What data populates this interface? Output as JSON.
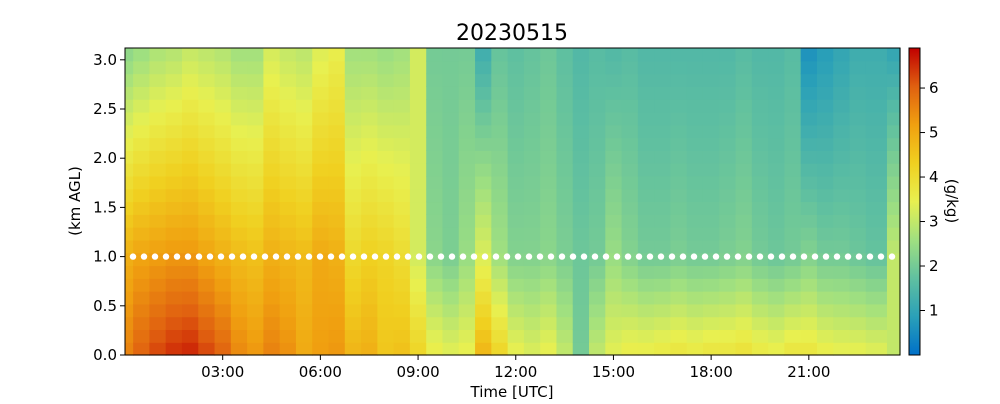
{
  "chart_data": {
    "type": "heatmap",
    "title": "20230515",
    "xlabel": "Time [UTC]",
    "ylabel": "(km AGL)",
    "xlim_hours": [
      0,
      23.8
    ],
    "ylim": [
      0,
      3.12
    ],
    "x_ticks": [
      {
        "hour": 3,
        "label": "03:00"
      },
      {
        "hour": 6,
        "label": "06:00"
      },
      {
        "hour": 9,
        "label": "09:00"
      },
      {
        "hour": 12,
        "label": "12:00"
      },
      {
        "hour": 15,
        "label": "15:00"
      },
      {
        "hour": 18,
        "label": "18:00"
      },
      {
        "hour": 21,
        "label": "21:00"
      }
    ],
    "y_ticks": [
      {
        "value": 0.0,
        "label": "0.0"
      },
      {
        "value": 0.5,
        "label": "0.5"
      },
      {
        "value": 1.0,
        "label": "1.0"
      },
      {
        "value": 1.5,
        "label": "1.5"
      },
      {
        "value": 2.0,
        "label": "2.0"
      },
      {
        "value": 2.5,
        "label": "2.5"
      },
      {
        "value": 3.0,
        "label": "3.0"
      }
    ],
    "colorbar": {
      "label": "(g/kg)",
      "range": [
        0,
        6.9
      ],
      "ticks": [
        {
          "value": 1,
          "label": "1"
        },
        {
          "value": 2,
          "label": "2"
        },
        {
          "value": 3,
          "label": "3"
        },
        {
          "value": 4,
          "label": "4"
        },
        {
          "value": 5,
          "label": "5"
        },
        {
          "value": 6,
          "label": "6"
        }
      ],
      "colormap": [
        "#0070c8",
        "#2aa0b8",
        "#60c0a0",
        "#a0e080",
        "#e8f050",
        "#f0d020",
        "#f0a010",
        "#e06010",
        "#c00000"
      ]
    },
    "reference_line": {
      "height_km": 1.0,
      "style": "dotted",
      "color": "#ffffff"
    },
    "profile_hours": [
      0,
      0.5,
      1,
      1.5,
      2,
      2.5,
      3,
      3.5,
      4,
      4.5,
      5,
      5.5,
      6,
      6.5,
      7,
      7.5,
      8,
      8.5,
      9,
      9.5,
      10,
      10.5,
      11,
      11.5,
      12,
      12.5,
      13,
      13.5,
      14,
      14.5,
      15,
      15.5,
      16,
      16.5,
      17,
      17.5,
      18,
      18.5,
      19,
      19.5,
      20,
      20.5,
      21,
      21.5,
      22,
      22.5,
      23,
      23.8
    ],
    "surface_values_gkg": [
      5.6,
      6.0,
      6.3,
      6.5,
      6.6,
      6.3,
      6.0,
      5.5,
      5.3,
      5.6,
      5.4,
      5.0,
      5.2,
      5.3,
      4.8,
      4.9,
      4.5,
      4.6,
      4.2,
      3.6,
      3.4,
      3.5,
      4.8,
      4.2,
      3.5,
      3.3,
      3.5,
      3.0,
      2.0,
      3.0,
      3.4,
      3.6,
      3.6,
      3.7,
      3.8,
      3.7,
      3.8,
      3.8,
      3.9,
      3.7,
      3.6,
      3.8,
      3.8,
      3.6,
      3.5,
      3.5,
      3.4,
      3.0
    ],
    "at_1km_values_gkg": [
      4.9,
      5.1,
      5.2,
      5.3,
      5.3,
      5.1,
      4.9,
      4.7,
      4.6,
      4.9,
      4.8,
      4.7,
      5.0,
      4.9,
      4.1,
      4.3,
      4.2,
      4.0,
      3.2,
      2.3,
      2.1,
      2.5,
      3.3,
      2.6,
      2.2,
      2.2,
      2.3,
      2.1,
      1.9,
      2.0,
      2.5,
      2.2,
      2.0,
      2.0,
      2.1,
      2.0,
      2.0,
      2.1,
      2.2,
      2.0,
      1.9,
      2.0,
      2.2,
      2.0,
      2.0,
      1.9,
      1.8,
      3.0
    ],
    "top_values_gkg": [
      2.3,
      2.5,
      2.7,
      2.8,
      3.0,
      2.9,
      2.8,
      2.6,
      2.6,
      3.2,
      3.0,
      2.9,
      3.3,
      3.5,
      2.6,
      2.6,
      2.5,
      2.6,
      3.2,
      2.0,
      2.0,
      2.0,
      1.2,
      1.8,
      1.7,
      1.8,
      1.9,
      1.7,
      1.5,
      1.6,
      1.5,
      1.6,
      1.5,
      1.5,
      1.5,
      1.5,
      1.5,
      1.5,
      1.6,
      1.5,
      1.5,
      1.6,
      0.6,
      0.8,
      1.0,
      1.2,
      1.2,
      1.0
    ]
  }
}
